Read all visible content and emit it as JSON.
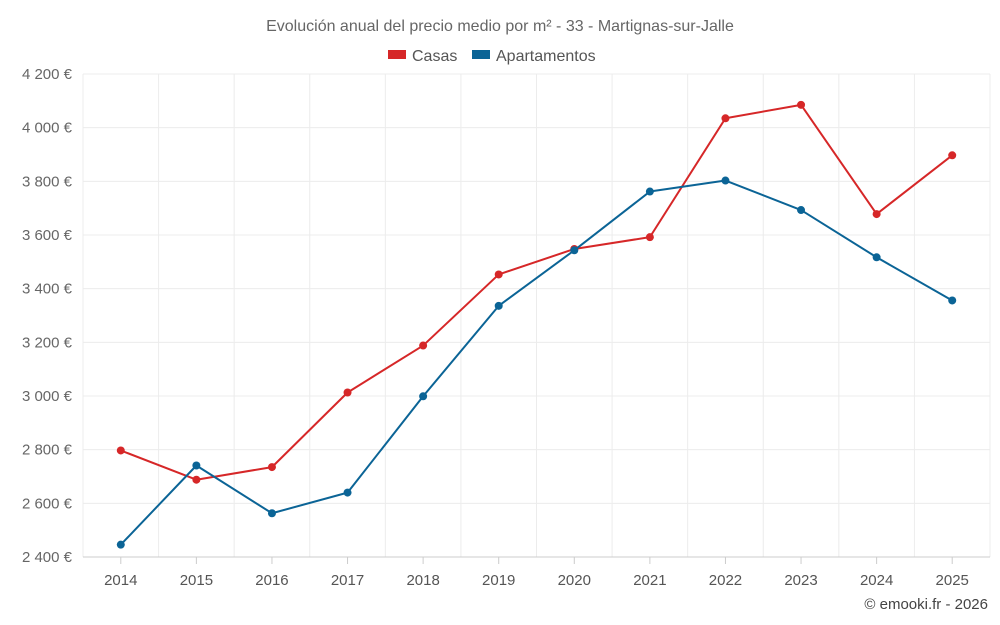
{
  "chart_data": {
    "type": "line",
    "title": "Evolución anual del precio medio por m² - 33 - Martignas-sur-Jalle",
    "categories": [
      "2014",
      "2015",
      "2016",
      "2017",
      "2018",
      "2019",
      "2020",
      "2021",
      "2022",
      "2023",
      "2024",
      "2025"
    ],
    "series": [
      {
        "name": "Casas",
        "color": "#d62728",
        "values": [
          2797,
          2688,
          2735,
          3013,
          3188,
          3453,
          3548,
          3592,
          4035,
          4085,
          3678,
          3897
        ]
      },
      {
        "name": "Apartamentos",
        "color": "#0b6496",
        "values": [
          2446,
          2741,
          2563,
          2640,
          2999,
          3336,
          3543,
          3762,
          3803,
          3693,
          3517,
          3356
        ]
      }
    ],
    "ylim": [
      2400,
      4200
    ],
    "yticks": [
      2400,
      2600,
      2800,
      3000,
      3200,
      3400,
      3600,
      3800,
      4000,
      4200
    ],
    "ytick_labels": [
      "2 400 €",
      "2 600 €",
      "2 800 €",
      "3 000 €",
      "3 200 €",
      "3 400 €",
      "3 600 €",
      "3 800 €",
      "4 000 €",
      "4 200 €"
    ],
    "xlabel": "",
    "ylabel": "",
    "legend_position": "top-center",
    "grid": true
  },
  "credit": "© emooki.fr - 2026"
}
